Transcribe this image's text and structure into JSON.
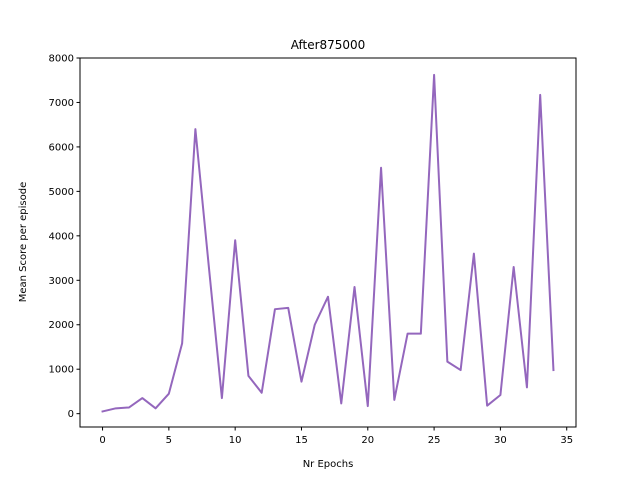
{
  "chart_data": {
    "type": "line",
    "title": "After875000",
    "xlabel": "Nr Epochs",
    "ylabel": "Mean Score per episode",
    "xlim": [
      -1.7,
      35.7
    ],
    "ylim": [
      -300,
      8000
    ],
    "xticks": [
      0,
      5,
      10,
      15,
      20,
      25,
      30,
      35
    ],
    "yticks": [
      0,
      1000,
      2000,
      3000,
      4000,
      5000,
      6000,
      7000,
      8000
    ],
    "grid": false,
    "series_color": "#9467bd",
    "series": [
      {
        "x": [
          0,
          1,
          2,
          3,
          4,
          5,
          6,
          7,
          8,
          9,
          10,
          11,
          12,
          13,
          14,
          15,
          16,
          17,
          18,
          19,
          20,
          21,
          22,
          23,
          24,
          25,
          26,
          27,
          28,
          29,
          30,
          31,
          32,
          33,
          34
        ],
        "values": [
          50,
          120,
          140,
          350,
          120,
          450,
          1580,
          6400,
          3350,
          350,
          3900,
          850,
          470,
          2350,
          2380,
          720,
          2000,
          2630,
          230,
          2850,
          170,
          5530,
          310,
          1800,
          1800,
          7620,
          1170,
          980,
          3600,
          180,
          420,
          3300,
          590,
          7170,
          980
        ]
      }
    ]
  }
}
